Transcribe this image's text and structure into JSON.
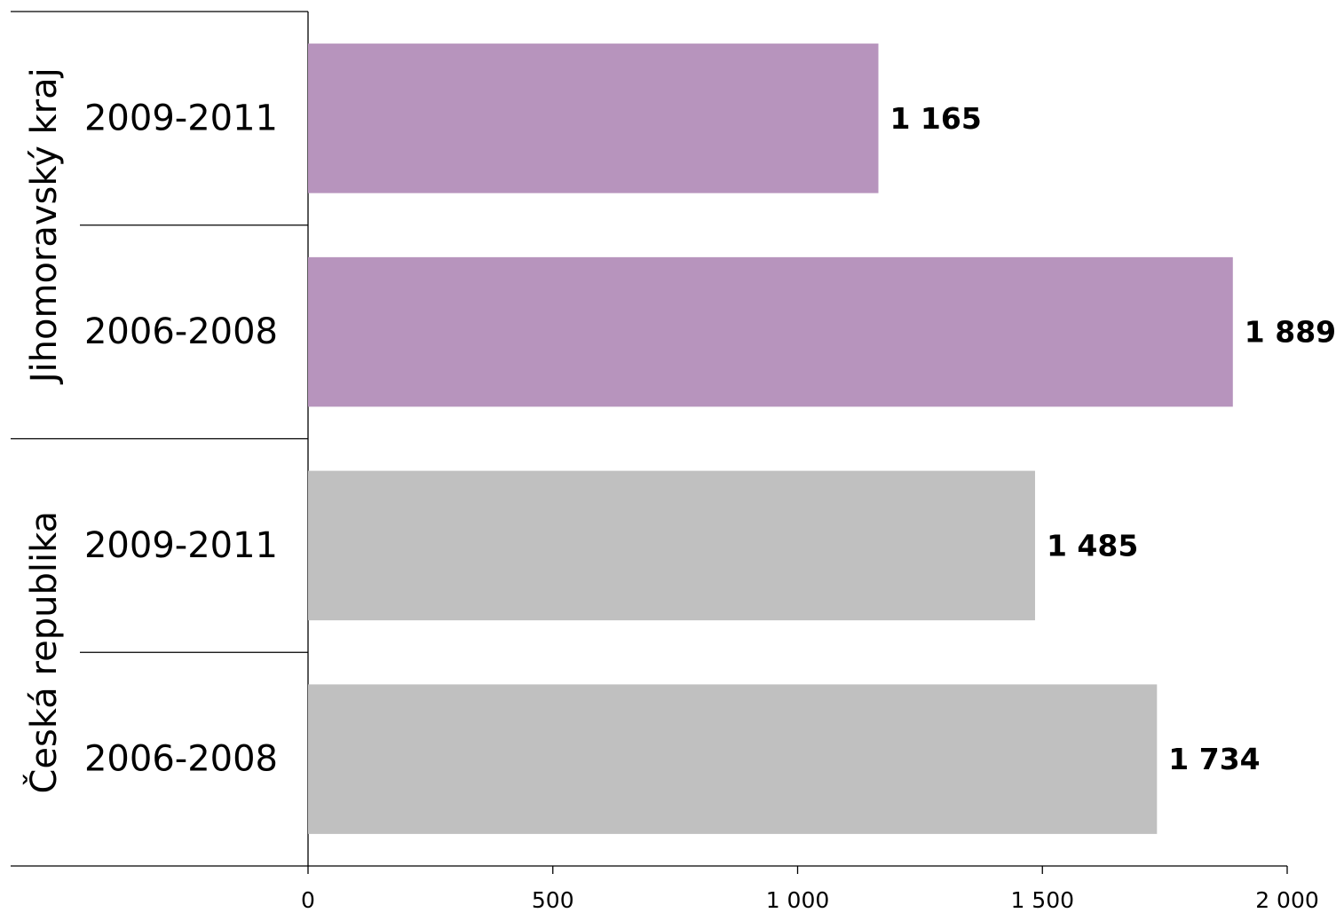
{
  "chart_data": {
    "type": "bar",
    "orientation": "horizontal",
    "groups": [
      {
        "name": "Jihomoravský kraj",
        "color": "#b794bd",
        "bars": [
          {
            "category": "2009-2011",
            "value": 1165,
            "label": "1 165"
          },
          {
            "category": "2006-2008",
            "value": 1889,
            "label": "1 889"
          }
        ]
      },
      {
        "name": "Česká republika",
        "color": "#c0c0c0",
        "bars": [
          {
            "category": "2009-2011",
            "value": 1485,
            "label": "1 485"
          },
          {
            "category": "2006-2008",
            "value": 1734,
            "label": "1 734"
          }
        ]
      }
    ],
    "xlim": [
      0,
      2000
    ],
    "xticks": [
      0,
      500,
      1000,
      1500,
      2000
    ],
    "xtick_labels": [
      "0",
      "500",
      "1 000",
      "1 500",
      "2 000"
    ],
    "grid": false,
    "legend": "none"
  }
}
